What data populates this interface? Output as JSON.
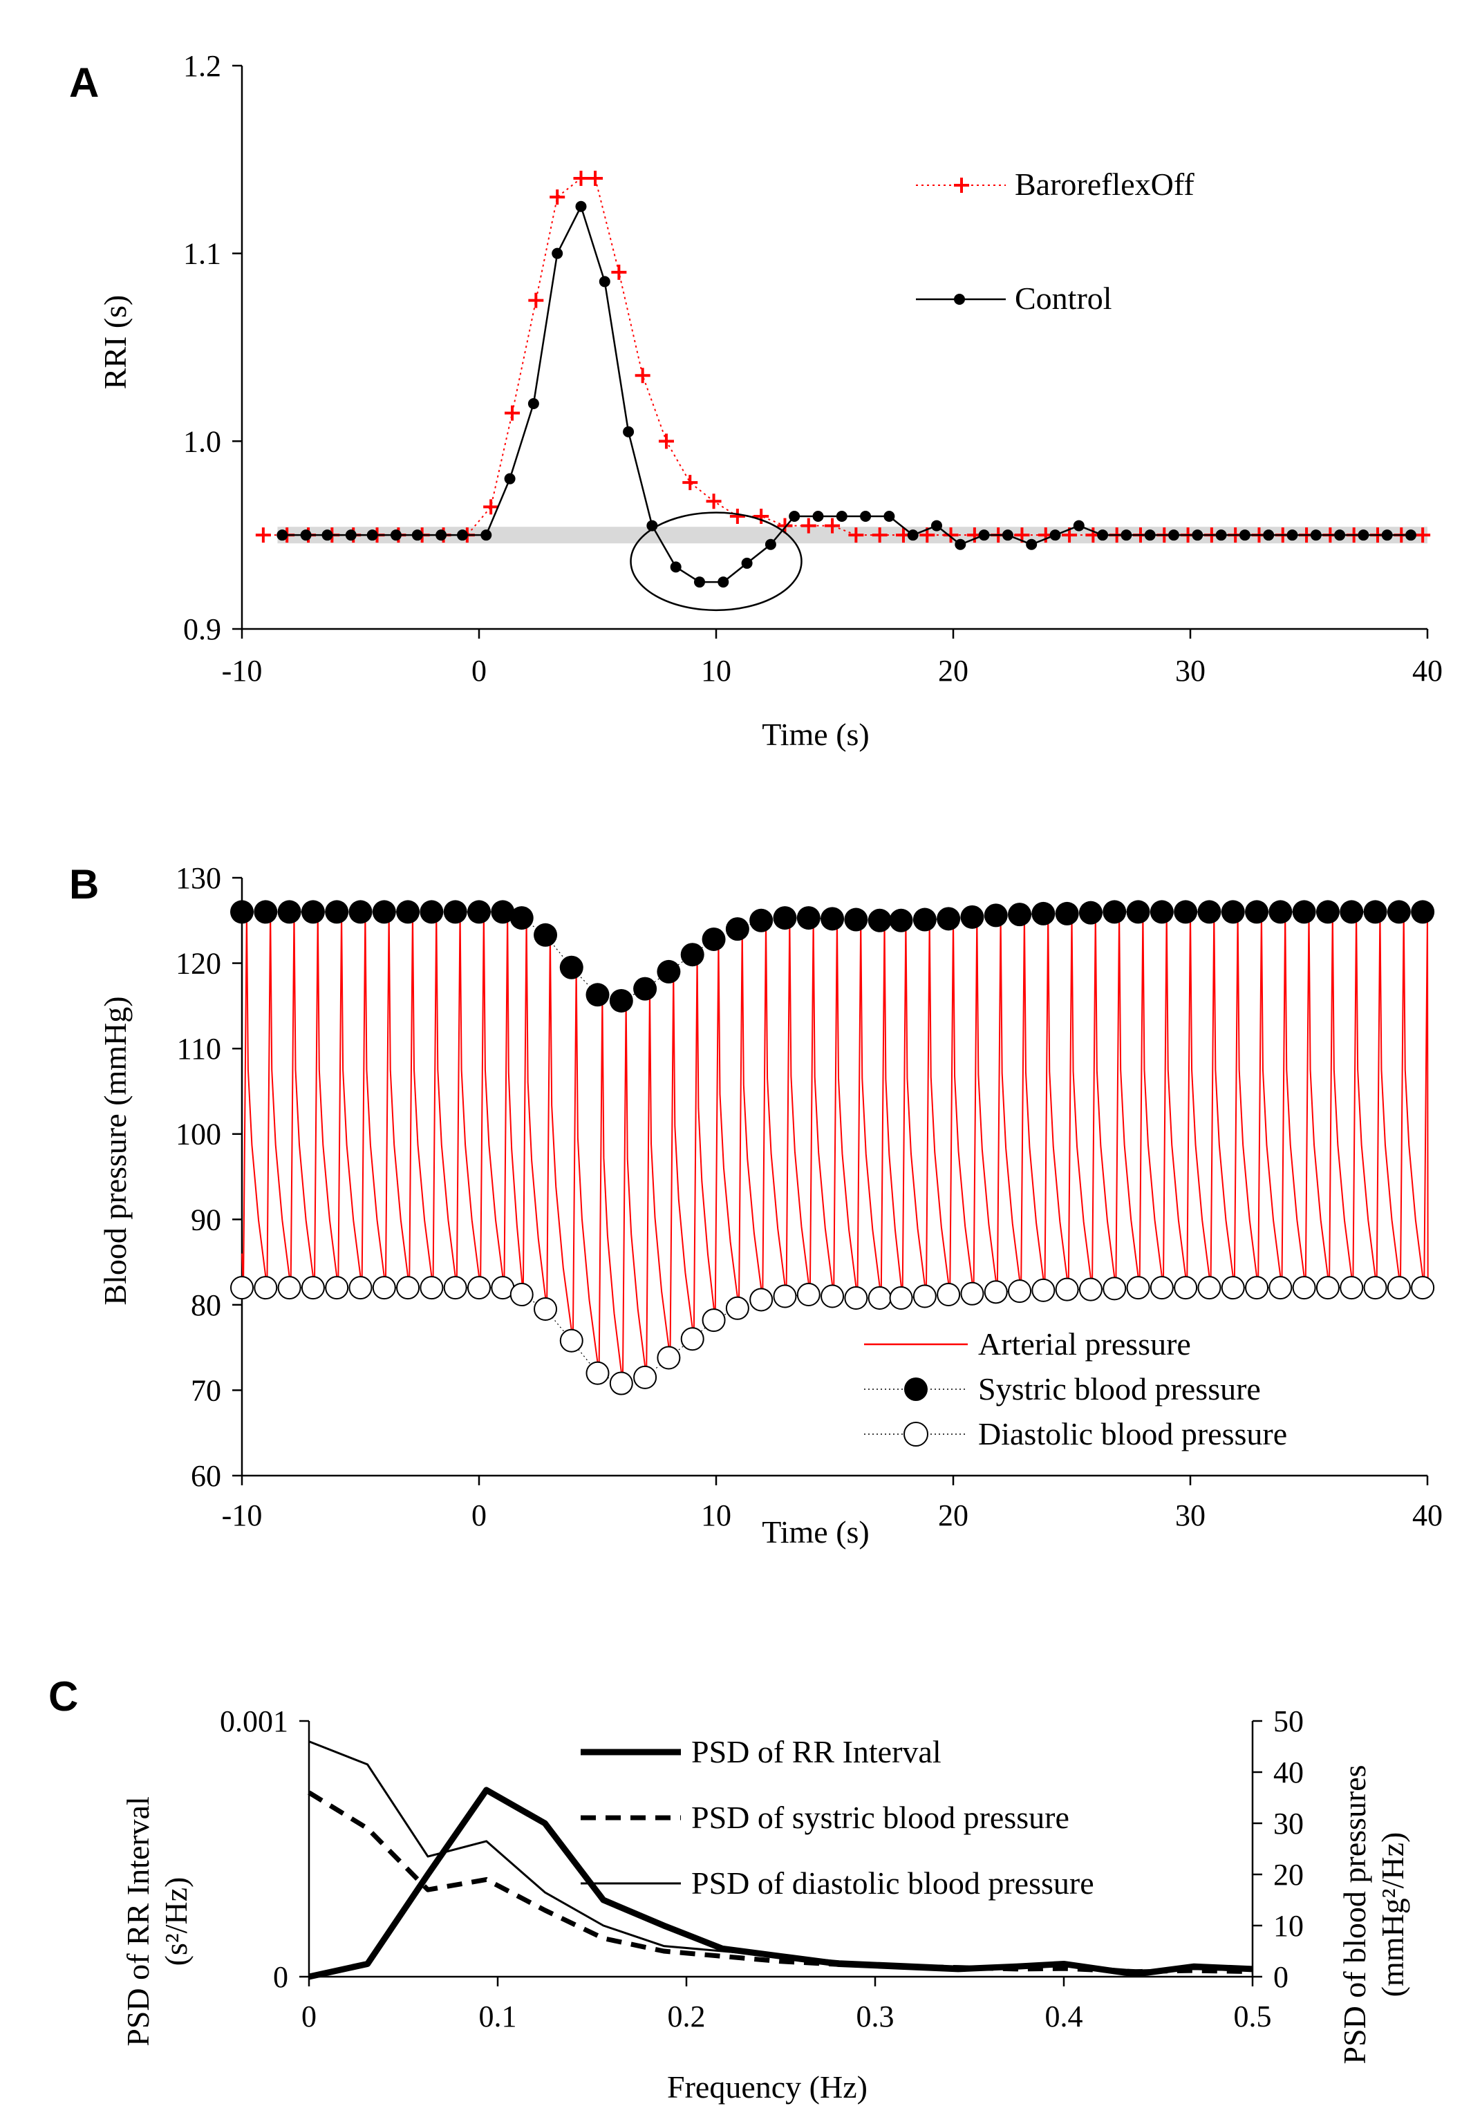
{
  "colors": {
    "baroreflex_off": "#ff0000",
    "control": "#000000",
    "arterial": "#ff0000",
    "band": "#d9d9d9"
  },
  "panel_labels": [
    "A",
    "B",
    "C"
  ],
  "chart_data": [
    {
      "id": "A",
      "type": "line",
      "xlabel": "Time (s)",
      "ylabel": "RRI (s)",
      "xlim": [
        -10,
        40
      ],
      "ylim": [
        0.9,
        1.2
      ],
      "xticks": [
        -10,
        0,
        10,
        20,
        30,
        40
      ],
      "xtick_labels": [
        "-10",
        "0",
        "10",
        "20",
        "30",
        "40"
      ],
      "yticks": [
        0.9,
        1.0,
        1.1,
        1.2
      ],
      "ytick_labels": [
        "0.9",
        "1.0",
        "1.1",
        "1.2"
      ],
      "band": {
        "y": 0.95,
        "x_range": [
          -8.5,
          40
        ]
      },
      "annotation": "ellipse around post-peak undershoot of Control",
      "ellipse": {
        "cx": 10,
        "cy": 0.936,
        "rx": 3.6,
        "ry": 0.026
      },
      "series": [
        {
          "name": "BaroreflexOff",
          "marker": "plus",
          "x": [
            -9.1,
            -8.1,
            -7.2,
            -6.2,
            -5.3,
            -4.3,
            -3.4,
            -2.4,
            -1.5,
            -0.5,
            0.5,
            1.4,
            2.4,
            3.3,
            4.3,
            4.9,
            5.9,
            6.9,
            7.9,
            8.9,
            9.9,
            10.9,
            11.9,
            12.9,
            13.9,
            14.9,
            15.9,
            16.9,
            17.9,
            18.9,
            19.9,
            20.9,
            21.9,
            22.9,
            23.9,
            24.9,
            25.9,
            26.9,
            27.9,
            28.9,
            29.9,
            30.9,
            31.9,
            32.9,
            33.9,
            34.9,
            35.9,
            36.9,
            37.9,
            38.9,
            39.8
          ],
          "values": [
            0.95,
            0.95,
            0.95,
            0.95,
            0.95,
            0.95,
            0.95,
            0.95,
            0.95,
            0.95,
            0.965,
            1.015,
            1.075,
            1.13,
            1.14,
            1.14,
            1.09,
            1.035,
            1.0,
            0.978,
            0.968,
            0.96,
            0.96,
            0.955,
            0.955,
            0.955,
            0.95,
            0.95,
            0.95,
            0.95,
            0.95,
            0.95,
            0.95,
            0.95,
            0.95,
            0.95,
            0.95,
            0.95,
            0.95,
            0.95,
            0.95,
            0.95,
            0.95,
            0.95,
            0.95,
            0.95,
            0.95,
            0.95,
            0.95,
            0.95,
            0.95
          ]
        },
        {
          "name": "Control",
          "marker": "dot",
          "x": [
            -8.3,
            -7.3,
            -6.4,
            -5.4,
            -4.5,
            -3.5,
            -2.6,
            -1.6,
            -0.7,
            0.3,
            1.3,
            2.3,
            3.3,
            4.3,
            5.3,
            6.3,
            7.3,
            8.3,
            9.3,
            10.3,
            11.3,
            12.3,
            13.3,
            14.3,
            15.3,
            16.3,
            17.3,
            18.3,
            19.3,
            20.3,
            21.3,
            22.3,
            23.3,
            24.3,
            25.3,
            26.3,
            27.3,
            28.3,
            29.3,
            30.3,
            31.3,
            32.3,
            33.3,
            34.3,
            35.3,
            36.3,
            37.3,
            38.3,
            39.3
          ],
          "values": [
            0.95,
            0.95,
            0.95,
            0.95,
            0.95,
            0.95,
            0.95,
            0.95,
            0.95,
            0.95,
            0.98,
            1.02,
            1.1,
            1.125,
            1.085,
            1.005,
            0.955,
            0.933,
            0.925,
            0.925,
            0.935,
            0.945,
            0.96,
            0.96,
            0.96,
            0.96,
            0.96,
            0.95,
            0.955,
            0.945,
            0.95,
            0.95,
            0.945,
            0.95,
            0.955,
            0.95,
            0.95,
            0.95,
            0.95,
            0.95,
            0.95,
            0.95,
            0.95,
            0.95,
            0.95,
            0.95,
            0.95,
            0.95,
            0.95
          ]
        }
      ],
      "legend": [
        "BaroreflexOff",
        "Control"
      ]
    },
    {
      "id": "B",
      "type": "line",
      "xlabel": "Time (s)",
      "ylabel": "Blood pressure (mmHg)",
      "xlim": [
        -10,
        40
      ],
      "ylim": [
        60,
        130
      ],
      "xticks": [
        -10,
        0,
        10,
        20,
        30,
        40
      ],
      "xtick_labels": [
        "-10",
        "0",
        "10",
        "20",
        "30",
        "40"
      ],
      "yticks": [
        60,
        70,
        80,
        90,
        100,
        110,
        120,
        130
      ],
      "ytick_labels": [
        "60",
        "70",
        "80",
        "90",
        "100",
        "110",
        "120",
        "130"
      ],
      "beat_times": [
        -10.0,
        -9.0,
        -8.0,
        -7.0,
        -6.0,
        -5.0,
        -4.0,
        -3.0,
        -2.0,
        -1.0,
        0.0,
        1.0,
        1.8,
        2.8,
        3.9,
        5.0,
        6.0,
        7.0,
        8.0,
        9.0,
        9.9,
        10.9,
        11.9,
        12.9,
        13.9,
        14.9,
        15.9,
        16.9,
        17.8,
        18.8,
        19.8,
        20.8,
        21.8,
        22.8,
        23.8,
        24.8,
        25.8,
        26.8,
        27.8,
        28.8,
        29.8,
        30.8,
        31.8,
        32.8,
        33.8,
        34.8,
        35.8,
        36.8,
        37.8,
        38.8,
        39.8
      ],
      "systolic": [
        126,
        126,
        126,
        126,
        126,
        126,
        126,
        126,
        126,
        126,
        126,
        126,
        125.3,
        123.3,
        119.5,
        116.3,
        115.6,
        117,
        119,
        121,
        122.8,
        124,
        125,
        125.3,
        125.3,
        125.2,
        125.1,
        125,
        125,
        125.1,
        125.2,
        125.4,
        125.6,
        125.7,
        125.8,
        125.8,
        125.9,
        126,
        126,
        126,
        126,
        126,
        126,
        126,
        126,
        126,
        126,
        126,
        126,
        126,
        126
      ],
      "diastolic": [
        82,
        82,
        82,
        82,
        82,
        82,
        82,
        82,
        82,
        82,
        82,
        82,
        81.2,
        79.5,
        75.8,
        72,
        70.8,
        71.5,
        73.8,
        76,
        78.2,
        79.6,
        80.6,
        81,
        81.2,
        81,
        80.8,
        80.8,
        80.8,
        81,
        81.2,
        81.3,
        81.5,
        81.6,
        81.7,
        81.8,
        81.8,
        81.9,
        82,
        82,
        82,
        82,
        82,
        82,
        82,
        82,
        82,
        82,
        82,
        82,
        82
      ],
      "series": [
        {
          "name": "Arterial pressure",
          "style": "red line (pulsatile waveform)"
        },
        {
          "name": "Systric blood pressure",
          "marker": "filled circle"
        },
        {
          "name": "Diastolic blood pressure",
          "marker": "open circle"
        }
      ],
      "legend": [
        "Arterial pressure",
        "Systric blood pressure",
        "Diastolic blood pressure"
      ]
    },
    {
      "id": "C",
      "type": "line",
      "xlabel": "Frequency (Hz)",
      "ylabel_left": [
        "PSD of RR Interval",
        "(s²/Hz)"
      ],
      "ylabel_right": [
        "PSD of blood pressures",
        "(mmHg²/Hz)"
      ],
      "xlim": [
        0,
        0.5
      ],
      "ylim_left": [
        0,
        0.001
      ],
      "ylim_right": [
        0,
        50
      ],
      "xticks": [
        0,
        0.1,
        0.2,
        0.3,
        0.4,
        0.5
      ],
      "xtick_labels": [
        "0",
        "0.1",
        "0.2",
        "0.3",
        "0.4",
        "0.5"
      ],
      "yticks_left": [
        0,
        0.001
      ],
      "ytick_labels_left": [
        "0",
        "0.001"
      ],
      "yticks_right": [
        0,
        10,
        20,
        30,
        40,
        50
      ],
      "ytick_labels_right": [
        "0",
        "10",
        "20",
        "30",
        "40",
        "50"
      ],
      "frequency": [
        0,
        0.031,
        0.063,
        0.094,
        0.125,
        0.156,
        0.188,
        0.219,
        0.25,
        0.281,
        0.313,
        0.344,
        0.375,
        0.4,
        0.438,
        0.469,
        0.5
      ],
      "series": [
        {
          "name": "PSD of RR Interval",
          "axis": "left",
          "style": "thick solid",
          "values": [
            0,
            5e-05,
            0.0004,
            0.00073,
            0.0006,
            0.0003,
            0.0002,
            0.00011,
            8e-05,
            5e-05,
            4e-05,
            3e-05,
            4e-05,
            5e-05,
            1e-05,
            4e-05,
            3e-05
          ]
        },
        {
          "name": "PSD of systric blood pressure",
          "axis": "right",
          "style": "thick dashed",
          "values": [
            36,
            29,
            17,
            19,
            13,
            7.5,
            5,
            4,
            3,
            2.4,
            2,
            1.8,
            1.5,
            1.6,
            1,
            1.2,
            1
          ]
        },
        {
          "name": "PSD of diastolic blood pressure",
          "axis": "right",
          "style": "thin solid",
          "values": [
            46,
            41.5,
            23.5,
            26.5,
            16.5,
            10,
            6,
            5,
            4,
            3,
            2.5,
            2,
            2,
            2.3,
            1.2,
            1.5,
            1.2
          ]
        }
      ],
      "legend": [
        "PSD of RR Interval",
        "PSD of systric blood pressure",
        "PSD of diastolic blood pressure"
      ]
    }
  ]
}
